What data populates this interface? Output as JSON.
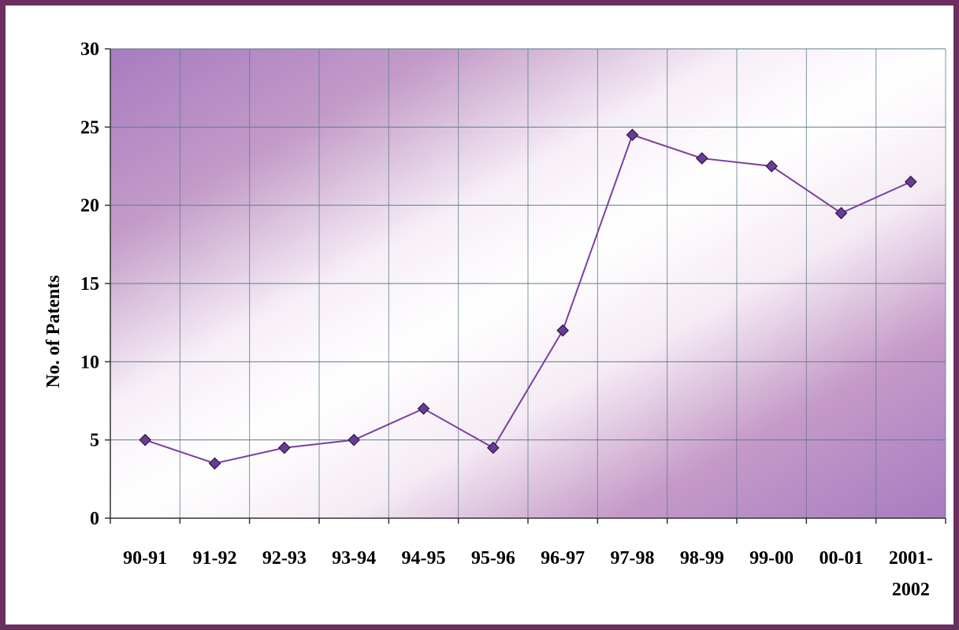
{
  "chart_data": {
    "type": "line",
    "title": "",
    "xlabel": "",
    "ylabel": "No. of Patents",
    "categories": [
      "90-91",
      "91-92",
      "92-93",
      "93-94",
      "94-95",
      "95-96",
      "96-97",
      "97-98",
      "98-99",
      "99-00",
      "00-01",
      "2001-2002"
    ],
    "category_lines": [
      [
        "90-91"
      ],
      [
        "91-92"
      ],
      [
        "92-93"
      ],
      [
        "93-94"
      ],
      [
        "94-95"
      ],
      [
        "95-96"
      ],
      [
        "96-97"
      ],
      [
        "97-98"
      ],
      [
        "98-99"
      ],
      [
        "99-00"
      ],
      [
        "00-01"
      ],
      [
        "2001-",
        "2002"
      ]
    ],
    "series": [
      {
        "values": [
          5,
          3.5,
          4.5,
          5,
          7,
          4.5,
          12,
          24.5,
          23,
          22.5,
          19.5,
          21.5
        ],
        "color": "#7b3fa0",
        "marker": "diamond",
        "marker_color": "#6a3a9a"
      }
    ],
    "ylim": [
      0,
      30
    ],
    "yticks": [
      0,
      5,
      10,
      15,
      20,
      25,
      30
    ],
    "grid": true,
    "legend": "none",
    "colors": {
      "frame": "#6b2f5f",
      "plot_gradient": "#a77cc0",
      "grid": "#5b7e8a"
    }
  }
}
